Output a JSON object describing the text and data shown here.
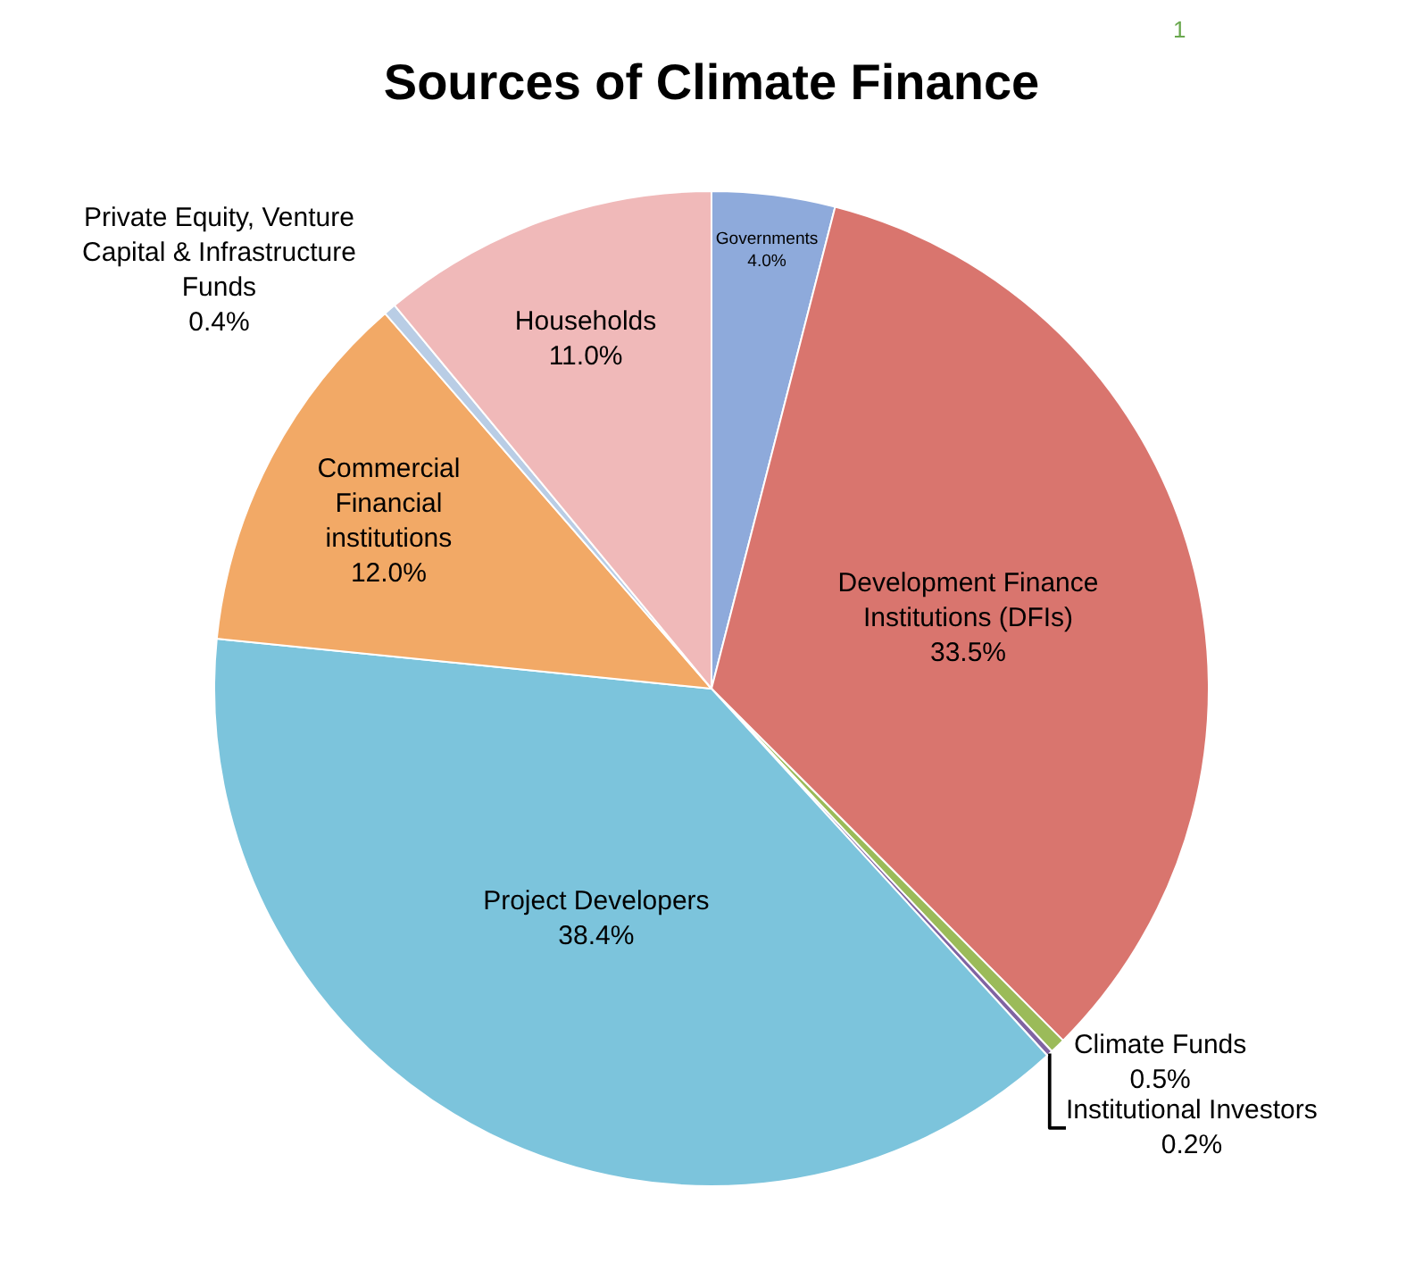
{
  "chart_data": {
    "type": "pie",
    "title": "Sources of Climate Finance",
    "categories": [
      "Governments",
      "Development Finance Institutions (DFIs)",
      "Climate Funds",
      "Institutional Investors",
      "Project Developers",
      "Commercial Financial institutions",
      "Private Equity, Venture Capital & Infrastructure Funds",
      "Households"
    ],
    "values": [
      4.0,
      33.5,
      0.5,
      0.2,
      38.4,
      12.0,
      0.4,
      11.0
    ],
    "value_labels": [
      "4.0%",
      "33.5%",
      "0.5%",
      "0.2%",
      "38.4%",
      "12.0%",
      "0.4%",
      "11.0%"
    ],
    "colors": [
      "#8eaadb",
      "#d9756e",
      "#9bbb59",
      "#8064a2",
      "#7cc4dc",
      "#f2a966",
      "#b9cde5",
      "#f0b9b9"
    ],
    "annotations": [
      "1"
    ],
    "legend": false
  }
}
